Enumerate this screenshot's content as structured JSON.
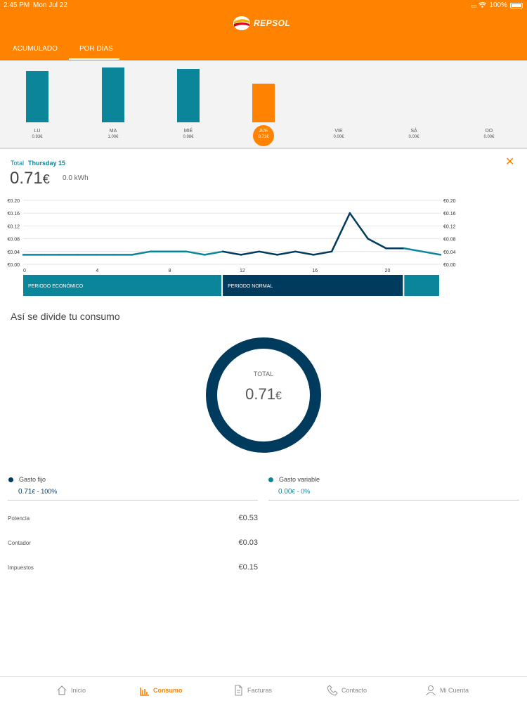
{
  "status_bar": {
    "time": "2:45 PM",
    "date": "Mon Jul 22",
    "battery": "100%"
  },
  "header": {
    "brand": "REPSOL"
  },
  "tabs": [
    {
      "label": "ACUMULADO",
      "active": false
    },
    {
      "label": "POR DÍAS",
      "active": true
    }
  ],
  "week": {
    "selected_index": 3,
    "days": [
      {
        "label": "LU",
        "value_text": "0.93€",
        "value": 0.93
      },
      {
        "label": "MA",
        "value_text": "1.00€",
        "value": 1.0
      },
      {
        "label": "MIÉ",
        "value_text": "0.98€",
        "value": 0.98
      },
      {
        "label": "JUE",
        "value_text": "0.71€",
        "value": 0.71
      },
      {
        "label": "VIE",
        "value_text": "0.00€",
        "value": 0.0
      },
      {
        "label": "SÁ",
        "value_text": "0.00€",
        "value": 0.0
      },
      {
        "label": "DO",
        "value_text": "0.00€",
        "value": 0.0
      }
    ]
  },
  "detail": {
    "total_label": "Total",
    "date": "Thursday 15",
    "amount": "0.71",
    "currency": "€",
    "kwh": "0.0 kWh"
  },
  "chart_data": {
    "type": "line",
    "x": [
      0,
      1,
      2,
      3,
      4,
      5,
      6,
      7,
      8,
      9,
      10,
      11,
      12,
      13,
      14,
      15,
      16,
      17,
      18,
      19,
      20,
      21,
      22,
      23
    ],
    "values": [
      0.03,
      0.03,
      0.03,
      0.03,
      0.03,
      0.03,
      0.03,
      0.04,
      0.04,
      0.04,
      0.03,
      0.04,
      0.03,
      0.04,
      0.03,
      0.04,
      0.03,
      0.04,
      0.16,
      0.08,
      0.05,
      0.05,
      0.04,
      0.03
    ],
    "x_ticks": [
      "0",
      "4",
      "8",
      "12",
      "16",
      "20"
    ],
    "y_ticks": [
      "€0.00",
      "€0.04",
      "€0.08",
      "€0.12",
      "€0.16",
      "€0.20"
    ],
    "ylim": [
      0,
      0.2
    ],
    "xlim": [
      0,
      23
    ],
    "periods": [
      {
        "label": "PERIODO ECONÓMICO",
        "start": 0,
        "end": 11,
        "color": "#0B8599"
      },
      {
        "label": "PERIODO NORMAL",
        "start": 11,
        "end": 21,
        "color": "#003A5D"
      },
      {
        "label": "",
        "start": 21,
        "end": 23,
        "color": "#0B8599"
      }
    ],
    "colors": {
      "economico": "#0B8599",
      "normal": "#003A5D"
    }
  },
  "breakdown": {
    "title": "Así se divide tu consumo",
    "donut_label": "TOTAL",
    "donut_value": "0.71",
    "donut_currency": "€",
    "fixed": {
      "label": "Gasto fijo",
      "amount": "0.71",
      "currency": "€",
      "percent": "- 100%",
      "color": "#003A5D"
    },
    "variable": {
      "label": "Gasto variable",
      "amount": "0.00",
      "currency": "€",
      "percent": "- 0%",
      "color": "#0B8599"
    },
    "rows": [
      {
        "label": "Potencia",
        "value": "€0.53"
      },
      {
        "label": "Contador",
        "value": "€0.03"
      },
      {
        "label": "Impuestos",
        "value": "€0.15"
      }
    ]
  },
  "nav": [
    {
      "label": "Inicio",
      "icon": "home-icon",
      "active": false
    },
    {
      "label": "Consumo",
      "icon": "chart-icon",
      "active": true
    },
    {
      "label": "Facturas",
      "icon": "document-icon",
      "active": false
    },
    {
      "label": "Contacto",
      "icon": "phone-icon",
      "active": false
    },
    {
      "label": "Mi Cuenta",
      "icon": "user-icon",
      "active": false
    }
  ],
  "colors": {
    "brand": "#FF8200",
    "teal": "#0B8599",
    "navy": "#003A5D"
  }
}
